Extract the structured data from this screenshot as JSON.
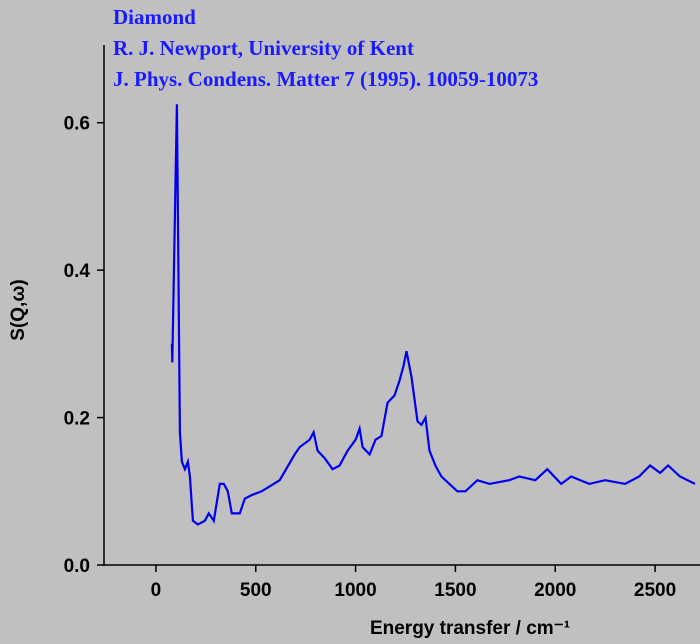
{
  "chart_data": {
    "type": "line",
    "title": [
      "Diamond",
      "R. J. Newport, University of Kent",
      "J. Phys. Condens. Matter 7 (1995). 10059-10073"
    ],
    "xlabel": "Energy transfer / cm⁻¹",
    "ylabel": "S(Q,ω)",
    "xlim": [
      -260,
      2725
    ],
    "ylim": [
      0,
      0.7
    ],
    "xticks": [
      0,
      500,
      1000,
      1500,
      2000,
      2500
    ],
    "yticks": [
      {
        "value": 0,
        "label": "0.0"
      },
      0.2,
      0.4,
      0.6
    ],
    "x": [
      80,
      82,
      105,
      120,
      130,
      145,
      160,
      170,
      185,
      210,
      245,
      265,
      290,
      320,
      340,
      360,
      380,
      420,
      445,
      480,
      530,
      620,
      695,
      720,
      770,
      790,
      810,
      845,
      885,
      920,
      960,
      1000,
      1020,
      1035,
      1070,
      1100,
      1130,
      1160,
      1195,
      1220,
      1240,
      1255,
      1280,
      1310,
      1330,
      1350,
      1370,
      1400,
      1430,
      1470,
      1510,
      1550,
      1610,
      1670,
      1770,
      1820,
      1900,
      1960,
      2030,
      2080,
      2170,
      2250,
      2350,
      2420,
      2475,
      2525,
      2565,
      2625,
      2700
    ],
    "series": [
      {
        "name": "S(Q,ω)",
        "color": "#0000ee",
        "values": [
          0.3,
          0.275,
          0.625,
          0.18,
          0.14,
          0.13,
          0.14,
          0.12,
          0.06,
          0.055,
          0.06,
          0.07,
          0.06,
          0.11,
          0.11,
          0.1,
          0.07,
          0.07,
          0.09,
          0.095,
          0.1,
          0.115,
          0.15,
          0.16,
          0.17,
          0.18,
          0.155,
          0.145,
          0.13,
          0.135,
          0.155,
          0.17,
          0.185,
          0.16,
          0.15,
          0.17,
          0.175,
          0.22,
          0.23,
          0.25,
          0.27,
          0.29,
          0.255,
          0.195,
          0.19,
          0.2,
          0.155,
          0.135,
          0.12,
          0.11,
          0.1,
          0.1,
          0.115,
          0.11,
          0.115,
          0.12,
          0.115,
          0.13,
          0.11,
          0.12,
          0.11,
          0.115,
          0.11,
          0.12,
          0.135,
          0.125,
          0.135,
          0.12,
          0.11
        ]
      }
    ]
  }
}
